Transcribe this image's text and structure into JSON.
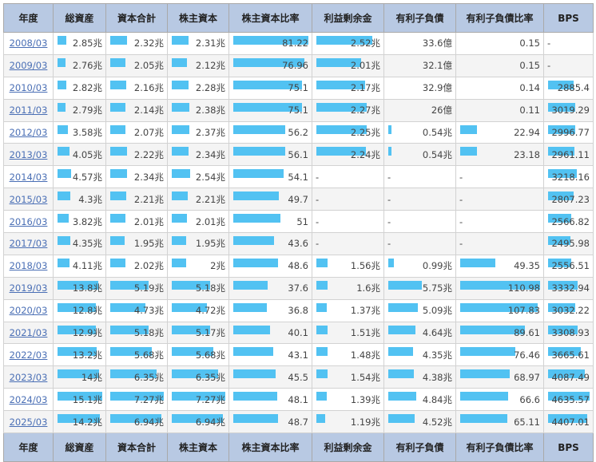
{
  "headers": [
    "年度",
    "総資産",
    "資本合計",
    "株主資本",
    "株主資本比率",
    "利益剰余金",
    "有利子負債",
    "有利子負債比率",
    "BPS"
  ],
  "bar_color": "#52c2f2",
  "header_color": "#b8c9e3",
  "rows": [
    {
      "year": "2008/03",
      "cells": [
        {
          "text": "2.85兆",
          "bar": 0.19
        },
        {
          "text": "2.32兆",
          "bar": 0.32
        },
        {
          "text": "2.31兆",
          "bar": 0.31
        },
        {
          "text": "81.22",
          "bar": 1.0
        },
        {
          "text": "2.52兆",
          "bar": 0.88
        },
        {
          "text": "33.6億",
          "bar": null
        },
        {
          "text": "0.15",
          "bar": null
        },
        {
          "text": "-",
          "bar": null
        }
      ]
    },
    {
      "year": "2009/03",
      "cells": [
        {
          "text": "2.76兆",
          "bar": 0.18
        },
        {
          "text": "2.05兆",
          "bar": 0.28
        },
        {
          "text": "2.12兆",
          "bar": 0.29
        },
        {
          "text": "76.96",
          "bar": 0.95
        },
        {
          "text": "2.01兆",
          "bar": 0.7
        },
        {
          "text": "32.1億",
          "bar": null
        },
        {
          "text": "0.15",
          "bar": null
        },
        {
          "text": "-",
          "bar": null
        }
      ]
    },
    {
      "year": "2010/03",
      "cells": [
        {
          "text": "2.82兆",
          "bar": 0.19
        },
        {
          "text": "2.16兆",
          "bar": 0.3
        },
        {
          "text": "2.28兆",
          "bar": 0.31
        },
        {
          "text": "75.1",
          "bar": 0.92
        },
        {
          "text": "2.17兆",
          "bar": 0.76
        },
        {
          "text": "32.9億",
          "bar": null
        },
        {
          "text": "0.14",
          "bar": null
        },
        {
          "text": "2885.4",
          "bar": 0.62
        }
      ]
    },
    {
      "year": "2011/03",
      "cells": [
        {
          "text": "2.79兆",
          "bar": 0.18
        },
        {
          "text": "2.14兆",
          "bar": 0.29
        },
        {
          "text": "2.38兆",
          "bar": 0.33
        },
        {
          "text": "75.1",
          "bar": 0.92
        },
        {
          "text": "2.27兆",
          "bar": 0.79
        },
        {
          "text": "26億",
          "bar": null
        },
        {
          "text": "0.11",
          "bar": null
        },
        {
          "text": "3019.29",
          "bar": 0.65
        }
      ]
    },
    {
      "year": "2012/03",
      "cells": [
        {
          "text": "3.58兆",
          "bar": 0.24
        },
        {
          "text": "2.07兆",
          "bar": 0.28
        },
        {
          "text": "2.37兆",
          "bar": 0.33
        },
        {
          "text": "56.2",
          "bar": 0.69
        },
        {
          "text": "2.25兆",
          "bar": 0.79
        },
        {
          "text": "0.54兆",
          "bar": 0.05
        },
        {
          "text": "22.94",
          "bar": 0.21
        },
        {
          "text": "2996.77",
          "bar": 0.65
        }
      ]
    },
    {
      "year": "2013/03",
      "cells": [
        {
          "text": "4.05兆",
          "bar": 0.27
        },
        {
          "text": "2.22兆",
          "bar": 0.31
        },
        {
          "text": "2.34兆",
          "bar": 0.32
        },
        {
          "text": "56.1",
          "bar": 0.69
        },
        {
          "text": "2.24兆",
          "bar": 0.78
        },
        {
          "text": "0.54兆",
          "bar": 0.05
        },
        {
          "text": "23.18",
          "bar": 0.21
        },
        {
          "text": "2961.11",
          "bar": 0.64
        }
      ]
    },
    {
      "year": "2014/03",
      "cells": [
        {
          "text": "4.57兆",
          "bar": 0.3
        },
        {
          "text": "2.34兆",
          "bar": 0.32
        },
        {
          "text": "2.54兆",
          "bar": 0.35
        },
        {
          "text": "54.1",
          "bar": 0.67
        },
        {
          "text": "-",
          "bar": null
        },
        {
          "text": "-",
          "bar": null
        },
        {
          "text": "-",
          "bar": null
        },
        {
          "text": "3218.16",
          "bar": 0.69
        }
      ]
    },
    {
      "year": "2015/03",
      "cells": [
        {
          "text": "4.3兆",
          "bar": 0.28
        },
        {
          "text": "2.21兆",
          "bar": 0.3
        },
        {
          "text": "2.21兆",
          "bar": 0.3
        },
        {
          "text": "49.7",
          "bar": 0.61
        },
        {
          "text": "-",
          "bar": null
        },
        {
          "text": "-",
          "bar": null
        },
        {
          "text": "-",
          "bar": null
        },
        {
          "text": "2807.23",
          "bar": 0.61
        }
      ]
    },
    {
      "year": "2016/03",
      "cells": [
        {
          "text": "3.82兆",
          "bar": 0.25
        },
        {
          "text": "2.01兆",
          "bar": 0.28
        },
        {
          "text": "2.01兆",
          "bar": 0.28
        },
        {
          "text": "51",
          "bar": 0.63
        },
        {
          "text": "-",
          "bar": null
        },
        {
          "text": "-",
          "bar": null
        },
        {
          "text": "-",
          "bar": null
        },
        {
          "text": "2566.82",
          "bar": 0.55
        }
      ]
    },
    {
      "year": "2017/03",
      "cells": [
        {
          "text": "4.35兆",
          "bar": 0.29
        },
        {
          "text": "1.95兆",
          "bar": 0.27
        },
        {
          "text": "1.95兆",
          "bar": 0.27
        },
        {
          "text": "43.6",
          "bar": 0.54
        },
        {
          "text": "-",
          "bar": null
        },
        {
          "text": "-",
          "bar": null
        },
        {
          "text": "-",
          "bar": null
        },
        {
          "text": "2495.98",
          "bar": 0.54
        }
      ]
    },
    {
      "year": "2018/03",
      "cells": [
        {
          "text": "4.11兆",
          "bar": 0.27
        },
        {
          "text": "2.02兆",
          "bar": 0.28
        },
        {
          "text": "2兆",
          "bar": 0.27
        },
        {
          "text": "48.6",
          "bar": 0.6
        },
        {
          "text": "1.56兆",
          "bar": 0.18
        },
        {
          "text": "0.99兆",
          "bar": 0.09
        },
        {
          "text": "49.35",
          "bar": 0.44
        },
        {
          "text": "2556.51",
          "bar": 0.55
        }
      ]
    },
    {
      "year": "2019/03",
      "cells": [
        {
          "text": "13.8兆",
          "bar": 0.91
        },
        {
          "text": "5.19兆",
          "bar": 0.71
        },
        {
          "text": "5.18兆",
          "bar": 0.71
        },
        {
          "text": "37.6",
          "bar": 0.46
        },
        {
          "text": "1.6兆",
          "bar": 0.18
        },
        {
          "text": "5.75兆",
          "bar": 0.52
        },
        {
          "text": "110.98",
          "bar": 1.0
        },
        {
          "text": "3332.94",
          "bar": 0.72
        }
      ]
    },
    {
      "year": "2020/03",
      "cells": [
        {
          "text": "12.8兆",
          "bar": 0.85
        },
        {
          "text": "4.73兆",
          "bar": 0.65
        },
        {
          "text": "4.72兆",
          "bar": 0.65
        },
        {
          "text": "36.8",
          "bar": 0.45
        },
        {
          "text": "1.37兆",
          "bar": 0.16
        },
        {
          "text": "5.09兆",
          "bar": 0.46
        },
        {
          "text": "107.83",
          "bar": 0.97
        },
        {
          "text": "3032.22",
          "bar": 0.65
        }
      ]
    },
    {
      "year": "2021/03",
      "cells": [
        {
          "text": "12.9兆",
          "bar": 0.85
        },
        {
          "text": "5.18兆",
          "bar": 0.71
        },
        {
          "text": "5.17兆",
          "bar": 0.71
        },
        {
          "text": "40.1",
          "bar": 0.49
        },
        {
          "text": "1.51兆",
          "bar": 0.17
        },
        {
          "text": "4.64兆",
          "bar": 0.42
        },
        {
          "text": "89.61",
          "bar": 0.81
        },
        {
          "text": "3308.93",
          "bar": 0.71
        }
      ]
    },
    {
      "year": "2022/03",
      "cells": [
        {
          "text": "13.2兆",
          "bar": 0.87
        },
        {
          "text": "5.68兆",
          "bar": 0.78
        },
        {
          "text": "5.68兆",
          "bar": 0.78
        },
        {
          "text": "43.1",
          "bar": 0.53
        },
        {
          "text": "1.48兆",
          "bar": 0.17
        },
        {
          "text": "4.35兆",
          "bar": 0.39
        },
        {
          "text": "76.46",
          "bar": 0.69
        },
        {
          "text": "3665.61",
          "bar": 0.79
        }
      ]
    },
    {
      "year": "2023/03",
      "cells": [
        {
          "text": "14兆",
          "bar": 0.93
        },
        {
          "text": "6.35兆",
          "bar": 0.87
        },
        {
          "text": "6.35兆",
          "bar": 0.87
        },
        {
          "text": "45.5",
          "bar": 0.56
        },
        {
          "text": "1.54兆",
          "bar": 0.18
        },
        {
          "text": "4.38兆",
          "bar": 0.4
        },
        {
          "text": "68.97",
          "bar": 0.62
        },
        {
          "text": "4087.49",
          "bar": 0.88
        }
      ]
    },
    {
      "year": "2024/03",
      "cells": [
        {
          "text": "15.1兆",
          "bar": 1.0
        },
        {
          "text": "7.27兆",
          "bar": 1.0
        },
        {
          "text": "7.27兆",
          "bar": 1.0
        },
        {
          "text": "48.1",
          "bar": 0.59
        },
        {
          "text": "1.39兆",
          "bar": 0.16
        },
        {
          "text": "4.84兆",
          "bar": 0.44
        },
        {
          "text": "66.6",
          "bar": 0.6
        },
        {
          "text": "4635.57",
          "bar": 1.0
        }
      ]
    },
    {
      "year": "2025/03",
      "cells": [
        {
          "text": "14.2兆",
          "bar": 0.94
        },
        {
          "text": "6.94兆",
          "bar": 0.95
        },
        {
          "text": "6.94兆",
          "bar": 0.95
        },
        {
          "text": "48.7",
          "bar": 0.6
        },
        {
          "text": "1.19兆",
          "bar": 0.14
        },
        {
          "text": "4.52兆",
          "bar": 0.41
        },
        {
          "text": "65.11",
          "bar": 0.59
        },
        {
          "text": "4407.01",
          "bar": 0.95
        }
      ]
    }
  ]
}
